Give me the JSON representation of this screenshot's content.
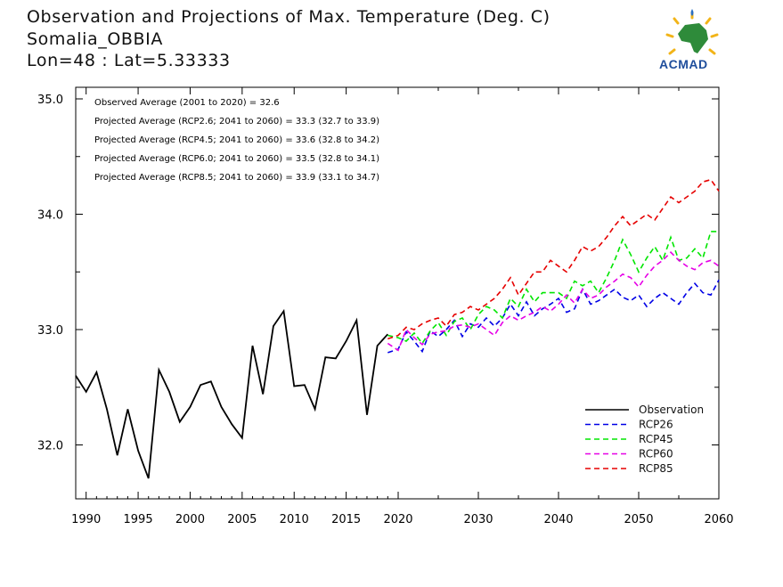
{
  "header": {
    "title": "Observation and Projections of Max. Temperature (Deg. C)",
    "location": "Somalia_OBBIA",
    "coords": "Lon=48 : Lat=5.33333",
    "logo_text": "ACMAD"
  },
  "chart_data": {
    "type": "line",
    "title": "Observation and Projections of Max. Temperature (Deg. C)",
    "xlim": [
      1989,
      2060
    ],
    "ylim": [
      31.5,
      35.0
    ],
    "x_ticks_left": [
      "1990",
      "1995",
      "2000",
      "2005",
      "2010",
      "2015",
      "2020"
    ],
    "x_ticks_right": [
      "2030",
      "2040",
      "2050",
      "2060"
    ],
    "y_ticks": [
      "35.0",
      "34.0",
      "33.0",
      "32.0"
    ],
    "annotations": [
      "Observed Average (2001 to 2020) = 32.6",
      "Projected Average (RCP2.6; 2041 to 2060) = 33.3 (32.7 to 33.9)",
      "Projected Average (RCP4.5; 2041 to 2060) = 33.6 (32.8 to 34.2)",
      "Projected Average (RCP6.0; 2041 to 2060) = 33.5 (32.8 to 34.1)",
      "Projected Average (RCP8.5; 2041 to 2060) = 33.9 (33.1 to 34.7)"
    ],
    "legend_position": "bottom-right",
    "observation": {
      "name": "Observation",
      "color": "#000000",
      "x": [
        1989,
        1990,
        1991,
        1992,
        1993,
        1994,
        1995,
        1996,
        1997,
        1998,
        1999,
        2000,
        2001,
        2002,
        2003,
        2004,
        2005,
        2006,
        2007,
        2008,
        2009,
        2010,
        2011,
        2012,
        2013,
        2014,
        2015,
        2016,
        2017,
        2018,
        2019
      ],
      "values": [
        32.6,
        32.46,
        32.63,
        32.31,
        31.91,
        32.31,
        31.95,
        31.71,
        32.65,
        32.46,
        32.2,
        32.33,
        32.52,
        32.55,
        32.33,
        32.18,
        32.06,
        32.86,
        32.44,
        33.03,
        33.16,
        32.51,
        32.52,
        32.31,
        32.76,
        32.75,
        32.9,
        33.08,
        32.26,
        32.86,
        32.96
      ]
    },
    "projection_x": [
      2019,
      2020,
      2021,
      2022,
      2023,
      2024,
      2025,
      2026,
      2027,
      2028,
      2029,
      2030,
      2031,
      2032,
      2033,
      2034,
      2035,
      2036,
      2037,
      2038,
      2039,
      2040,
      2041,
      2042,
      2043,
      2044,
      2045,
      2046,
      2047,
      2048,
      2049,
      2050,
      2051,
      2052,
      2053,
      2054,
      2055,
      2056,
      2057,
      2058,
      2059,
      2060
    ],
    "series": [
      {
        "name": "RCP26",
        "color": "#0000e6",
        "values": [
          32.8,
          32.83,
          32.98,
          32.9,
          32.81,
          32.99,
          32.94,
          33.0,
          33.08,
          32.94,
          33.05,
          33.02,
          33.1,
          33.03,
          33.1,
          33.22,
          33.12,
          33.24,
          33.12,
          33.18,
          33.22,
          33.27,
          33.15,
          33.18,
          33.35,
          33.22,
          33.25,
          33.3,
          33.35,
          33.28,
          33.25,
          33.3,
          33.2,
          33.27,
          33.32,
          33.27,
          33.22,
          33.32,
          33.4,
          33.32,
          33.3,
          33.43
        ]
      },
      {
        "name": "RCP45",
        "color": "#00e600",
        "values": [
          32.95,
          32.93,
          32.9,
          32.97,
          32.88,
          32.99,
          33.06,
          32.95,
          33.07,
          33.1,
          33.0,
          33.13,
          33.2,
          33.17,
          33.1,
          33.27,
          33.2,
          33.35,
          33.24,
          33.32,
          33.32,
          33.32,
          33.27,
          33.42,
          33.38,
          33.42,
          33.32,
          33.45,
          33.6,
          33.78,
          33.65,
          33.5,
          33.62,
          33.72,
          33.6,
          33.8,
          33.6,
          33.62,
          33.7,
          33.62,
          33.85,
          33.85
        ]
      },
      {
        "name": "RCP60",
        "color": "#e600e6",
        "values": [
          32.88,
          32.82,
          33.0,
          32.93,
          32.87,
          32.96,
          32.98,
          32.99,
          33.03,
          33.04,
          33.02,
          33.05,
          33.0,
          32.95,
          33.06,
          33.12,
          33.08,
          33.12,
          33.15,
          33.2,
          33.16,
          33.22,
          33.3,
          33.23,
          33.35,
          33.27,
          33.3,
          33.37,
          33.42,
          33.48,
          33.45,
          33.37,
          33.47,
          33.55,
          33.6,
          33.67,
          33.6,
          33.55,
          33.52,
          33.58,
          33.6,
          33.55
        ]
      },
      {
        "name": "RCP85",
        "color": "#e60000",
        "values": [
          32.92,
          32.95,
          33.02,
          33.0,
          33.05,
          33.08,
          33.1,
          33.03,
          33.13,
          33.15,
          33.2,
          33.17,
          33.22,
          33.27,
          33.35,
          33.45,
          33.3,
          33.4,
          33.5,
          33.5,
          33.6,
          33.55,
          33.5,
          33.6,
          33.72,
          33.68,
          33.72,
          33.8,
          33.9,
          33.98,
          33.9,
          33.95,
          34.0,
          33.95,
          34.05,
          34.15,
          34.1,
          34.15,
          34.2,
          34.28,
          34.3,
          34.2
        ]
      }
    ]
  }
}
